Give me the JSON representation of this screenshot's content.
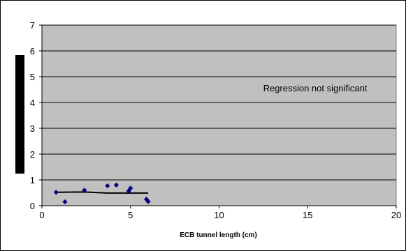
{
  "chart_data": {
    "type": "scatter",
    "title": "",
    "xlabel": "ECB tunnel length (cm)",
    "ylabel": "",
    "xlim": [
      0,
      20
    ],
    "ylim": [
      0,
      7
    ],
    "x_ticks": [
      0,
      5,
      10,
      15,
      20
    ],
    "y_ticks": [
      0,
      1,
      2,
      3,
      4,
      5,
      6,
      7
    ],
    "grid": "horizontal",
    "plot_background": "#c0c0c0",
    "marker_color": "#000080",
    "series": [
      {
        "name": "",
        "points": [
          {
            "x": 0.8,
            "y": 0.52
          },
          {
            "x": 1.3,
            "y": 0.15
          },
          {
            "x": 2.4,
            "y": 0.6
          },
          {
            "x": 3.7,
            "y": 0.77
          },
          {
            "x": 4.2,
            "y": 0.8
          },
          {
            "x": 4.9,
            "y": 0.57
          },
          {
            "x": 5.0,
            "y": 0.68
          },
          {
            "x": 5.9,
            "y": 0.25
          },
          {
            "x": 6.0,
            "y": 0.16
          }
        ]
      }
    ],
    "trend_line": [
      {
        "x": 0.8,
        "y": 0.52
      },
      {
        "x": 2.4,
        "y": 0.53
      },
      {
        "x": 3.7,
        "y": 0.49
      },
      {
        "x": 4.2,
        "y": 0.49
      },
      {
        "x": 5.0,
        "y": 0.49
      },
      {
        "x": 6.0,
        "y": 0.49
      }
    ],
    "annotation": "Regression not significant"
  }
}
